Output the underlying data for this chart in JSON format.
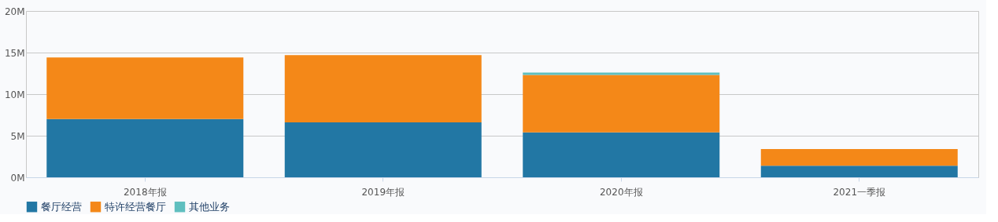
{
  "chart_data": {
    "type": "bar",
    "stacked": true,
    "categories": [
      "2018年报",
      "2019年报",
      "2020年报",
      "2021一季报"
    ],
    "series": [
      {
        "name": "餐厅经营",
        "color": "#2277a4",
        "values": [
          7.0,
          6.6,
          5.4,
          1.4
        ]
      },
      {
        "name": "特许经营餐厅",
        "color": "#f48818",
        "values": [
          7.4,
          8.1,
          6.9,
          2.0
        ]
      },
      {
        "name": "其他业务",
        "color": "#5fbfbf",
        "values": [
          null,
          null,
          0.3,
          null
        ]
      }
    ],
    "ylim": [
      0,
      20
    ],
    "yticks": [
      {
        "value": 0,
        "label": "0M"
      },
      {
        "value": 5,
        "label": "5M"
      },
      {
        "value": 10,
        "label": "10M"
      },
      {
        "value": 15,
        "label": "15M"
      },
      {
        "value": 20,
        "label": "20M"
      }
    ],
    "grid": "y",
    "legend": "bottom"
  }
}
